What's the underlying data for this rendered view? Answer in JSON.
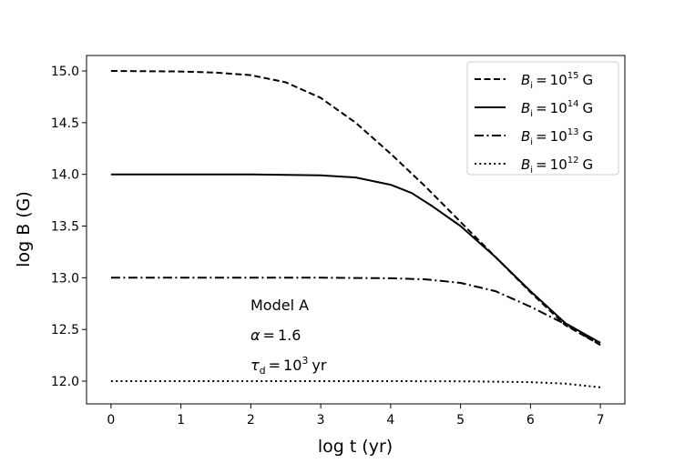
{
  "chart_data": {
    "type": "line",
    "title": "",
    "xlabel": "log t (yr)",
    "ylabel": "log B (G)",
    "xlim": [
      -0.35,
      7.35
    ],
    "ylim": [
      11.78,
      15.15
    ],
    "xticks": [
      0,
      1,
      2,
      3,
      4,
      5,
      6,
      7
    ],
    "xtick_labels": [
      "0",
      "1",
      "2",
      "3",
      "4",
      "5",
      "6",
      "7"
    ],
    "yticks": [
      12.0,
      12.5,
      13.0,
      13.5,
      14.0,
      14.5,
      15.0
    ],
    "ytick_labels": [
      "12.0",
      "12.5",
      "13.0",
      "13.5",
      "14.0",
      "14.5",
      "15.0"
    ],
    "grid": false,
    "legend_position": "top-right",
    "annotations": {
      "model": "Model A",
      "alpha_symbol": "α",
      "alpha_value": "1.6",
      "tau_symbol": "τ",
      "tau_sub": "d",
      "tau_base": "10",
      "tau_exp": "3",
      "tau_unit": "yr"
    },
    "series": [
      {
        "name": "B_i = 10^15 G",
        "legend": {
          "sym": "B",
          "sub": "i",
          "base": "10",
          "exp": "15",
          "unit": "G"
        },
        "style": "dashed",
        "x": [
          0,
          1,
          1.5,
          2,
          2.5,
          3,
          3.5,
          4,
          4.5,
          5,
          5.5,
          6,
          6.5,
          7
        ],
        "y": [
          15.0,
          14.995,
          14.985,
          14.96,
          14.89,
          14.74,
          14.5,
          14.2,
          13.88,
          13.54,
          13.2,
          12.86,
          12.54,
          12.35
        ]
      },
      {
        "name": "B_i = 10^14 G",
        "legend": {
          "sym": "B",
          "sub": "i",
          "base": "10",
          "exp": "14",
          "unit": "G"
        },
        "style": "solid",
        "x": [
          0,
          1,
          2,
          2.5,
          3,
          3.5,
          4,
          4.3,
          4.6,
          5,
          5.5,
          6,
          6.5,
          7
        ],
        "y": [
          14.0,
          14.0,
          14.0,
          13.995,
          13.99,
          13.97,
          13.9,
          13.82,
          13.69,
          13.5,
          13.2,
          12.87,
          12.56,
          12.37
        ]
      },
      {
        "name": "B_i = 10^13 G",
        "legend": {
          "sym": "B",
          "sub": "i",
          "base": "10",
          "exp": "13",
          "unit": "G"
        },
        "style": "dashdot",
        "x": [
          0,
          1,
          2,
          3,
          4,
          4.5,
          5,
          5.5,
          6,
          6.5,
          7
        ],
        "y": [
          13.0,
          13.0,
          13.0,
          13.0,
          12.995,
          12.985,
          12.95,
          12.87,
          12.72,
          12.55,
          12.35
        ]
      },
      {
        "name": "B_i = 10^12 G",
        "legend": {
          "sym": "B",
          "sub": "i",
          "base": "10",
          "exp": "12",
          "unit": "G"
        },
        "style": "dotted",
        "x": [
          0,
          1,
          2,
          3,
          4,
          5,
          5.5,
          6,
          6.5,
          7
        ],
        "y": [
          12.0,
          12.0,
          12.0,
          12.0,
          12.0,
          11.998,
          11.995,
          11.99,
          11.975,
          11.94
        ]
      }
    ]
  }
}
